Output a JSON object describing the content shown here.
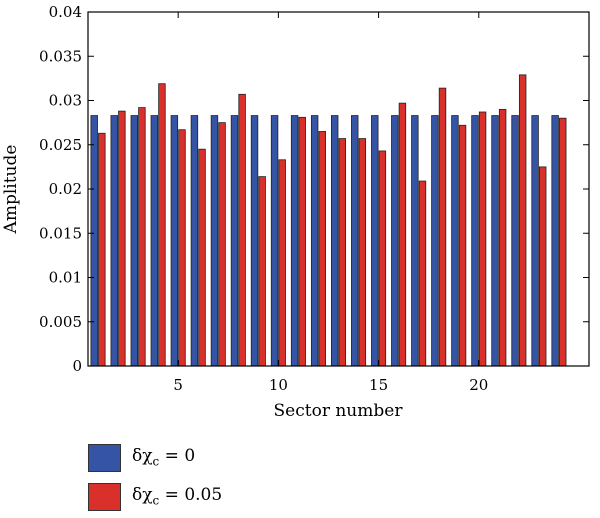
{
  "chart_data": {
    "type": "bar",
    "title": "",
    "xlabel": "Sector number",
    "ylabel": "Amplitude",
    "ylim": [
      0,
      0.04
    ],
    "yticks": [
      "0",
      "0.005",
      "0.01",
      "0.015",
      "0.02",
      "0.025",
      "0.03",
      "0.035",
      "0.04"
    ],
    "xticks": [
      "5",
      "10",
      "15",
      "20"
    ],
    "categories": [
      "1",
      "2",
      "3",
      "4",
      "5",
      "6",
      "7",
      "8",
      "9",
      "10",
      "11",
      "12",
      "13",
      "14",
      "15",
      "16",
      "17",
      "18",
      "19",
      "20",
      "21",
      "22",
      "23",
      "24"
    ],
    "series": [
      {
        "name": "δχc = 0",
        "color": "#3554a6",
        "values": [
          0.0283,
          0.0283,
          0.0283,
          0.0283,
          0.0283,
          0.0283,
          0.0283,
          0.0283,
          0.0283,
          0.0283,
          0.0283,
          0.0283,
          0.0283,
          0.0283,
          0.0283,
          0.0283,
          0.0283,
          0.0283,
          0.0283,
          0.0283,
          0.0283,
          0.0283,
          0.0283,
          0.0283
        ]
      },
      {
        "name": "δχc = 0.05",
        "color": "#d9302b",
        "values": [
          0.0263,
          0.0288,
          0.0292,
          0.0319,
          0.0267,
          0.0245,
          0.0275,
          0.0307,
          0.0214,
          0.0233,
          0.0281,
          0.0265,
          0.0257,
          0.0257,
          0.0243,
          0.0297,
          0.0209,
          0.0314,
          0.0272,
          0.0287,
          0.029,
          0.0329,
          0.0225,
          0.028
        ]
      }
    ],
    "legend": {
      "position": "bottom-left",
      "entries": [
        {
          "symbol": "δχ",
          "sub": "c",
          "suffix": " = 0",
          "color": "#3554a6"
        },
        {
          "symbol": "δχ",
          "sub": "c",
          "suffix": " = 0.05",
          "color": "#d9302b"
        }
      ]
    },
    "grid": false
  }
}
